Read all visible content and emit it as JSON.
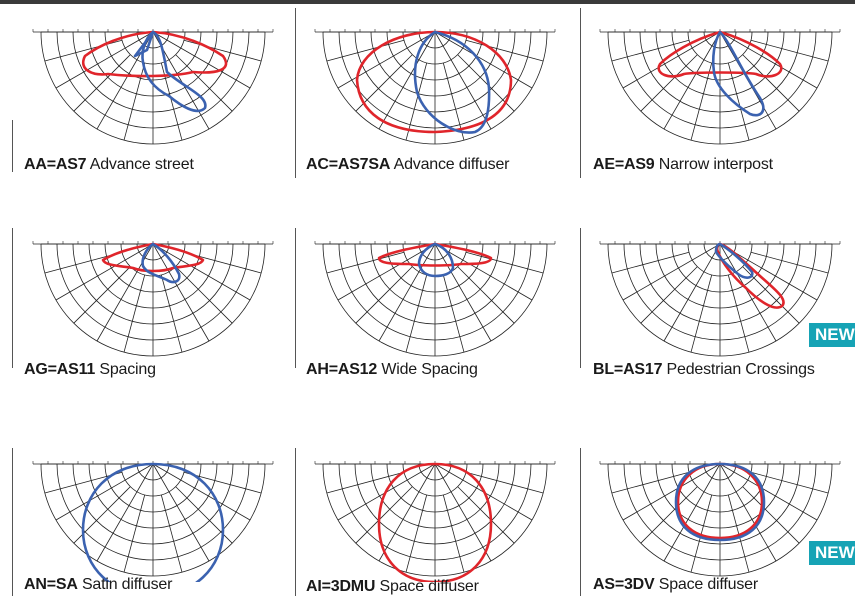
{
  "panels": [
    {
      "code": "AA=AS7",
      "desc": "Advance street",
      "badge": ""
    },
    {
      "code": "AC=AS7SA",
      "desc": "Advance diffuser",
      "badge": ""
    },
    {
      "code": "AE=AS9",
      "desc": "Narrow interpost",
      "badge": ""
    },
    {
      "code": "AG=AS11",
      "desc": "Spacing",
      "badge": ""
    },
    {
      "code": "AH=AS12",
      "desc": "Wide Spacing",
      "badge": ""
    },
    {
      "code": "BL=AS17",
      "desc": "Pedestrian Crossings",
      "badge": "NEW"
    },
    {
      "code": "AN=SA",
      "desc": "Satin diffuser",
      "badge": ""
    },
    {
      "code": "AI=3DMU",
      "desc": "Space diffuser",
      "badge": ""
    },
    {
      "code": "AS=3DV",
      "desc": "Space diffuser",
      "badge": "NEW"
    }
  ],
  "colors": {
    "red_curve": "#e0252b",
    "blue_curve": "#3b62b0",
    "grid": "#222222",
    "badge_bg": "#16a3b5"
  }
}
